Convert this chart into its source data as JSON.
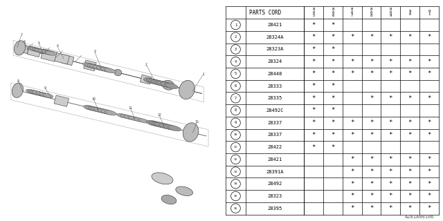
{
  "watermark": "A281A00106",
  "col_headers": [
    "8\n0\n5",
    "8\n0\n6",
    "8\n0\n7",
    "8\n0\n8",
    "8\n0\n9",
    "9\n0",
    "9\n1"
  ],
  "rows": [
    {
      "num": 1,
      "part": "28421",
      "marks": [
        1,
        1,
        0,
        0,
        0,
        0,
        0
      ]
    },
    {
      "num": 2,
      "part": "28324A",
      "marks": [
        1,
        1,
        1,
        1,
        1,
        1,
        1
      ]
    },
    {
      "num": 3,
      "part": "28323A",
      "marks": [
        1,
        1,
        0,
        0,
        0,
        0,
        0
      ]
    },
    {
      "num": 4,
      "part": "28324",
      "marks": [
        1,
        1,
        1,
        1,
        1,
        1,
        1
      ]
    },
    {
      "num": 5,
      "part": "28448",
      "marks": [
        1,
        1,
        1,
        1,
        1,
        1,
        1
      ]
    },
    {
      "num": 6,
      "part": "28333",
      "marks": [
        1,
        1,
        0,
        0,
        0,
        0,
        0
      ]
    },
    {
      "num": 7,
      "part": "28335",
      "marks": [
        1,
        1,
        0,
        1,
        1,
        1,
        1
      ]
    },
    {
      "num": 8,
      "part": "28492C",
      "marks": [
        1,
        1,
        0,
        0,
        0,
        0,
        0
      ]
    },
    {
      "num": 9,
      "part": "28337",
      "marks": [
        1,
        1,
        1,
        1,
        1,
        1,
        1
      ]
    },
    {
      "num": 10,
      "part": "28337",
      "marks": [
        1,
        1,
        1,
        1,
        1,
        1,
        1
      ]
    },
    {
      "num": 11,
      "part": "28422",
      "marks": [
        1,
        1,
        0,
        0,
        0,
        0,
        0
      ]
    },
    {
      "num": 12,
      "part": "28421",
      "marks": [
        0,
        0,
        1,
        1,
        1,
        1,
        1
      ]
    },
    {
      "num": 13,
      "part": "28391A",
      "marks": [
        0,
        0,
        1,
        1,
        1,
        1,
        1
      ]
    },
    {
      "num": 14,
      "part": "28492",
      "marks": [
        0,
        0,
        1,
        1,
        1,
        1,
        1
      ]
    },
    {
      "num": 15,
      "part": "28323",
      "marks": [
        0,
        0,
        1,
        1,
        1,
        1,
        1
      ]
    },
    {
      "num": 16,
      "part": "28395",
      "marks": [
        0,
        0,
        1,
        1,
        1,
        1,
        1
      ]
    }
  ],
  "bg_color": "#ffffff",
  "line_color": "#000000",
  "text_color": "#000000",
  "diagram_color": "#888888",
  "diagram_light": "#cccccc",
  "diagram_dark": "#444444"
}
